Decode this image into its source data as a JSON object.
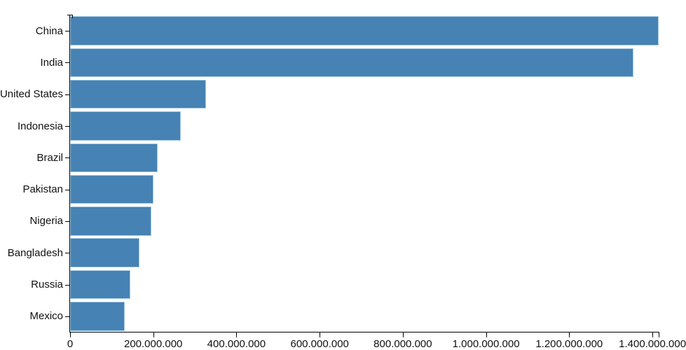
{
  "chart_data": {
    "type": "bar",
    "orientation": "horizontal",
    "title": "",
    "xlabel": "",
    "ylabel": "",
    "legend": false,
    "grid": false,
    "categories": [
      "China",
      "India",
      "United States",
      "Indonesia",
      "Brazil",
      "Pakistan",
      "Nigeria",
      "Bangladesh",
      "Russia",
      "Mexico"
    ],
    "values": [
      1415045928,
      1354051854,
      326766748,
      266794980,
      210867954,
      200813818,
      195875237,
      166368149,
      143964709,
      130759074
    ],
    "xlim": [
      0,
      1415045928
    ],
    "x_ticks": [
      {
        "value": 0,
        "label": "0"
      },
      {
        "value": 200000000,
        "label": "200.000.000"
      },
      {
        "value": 400000000,
        "label": "400.000.000"
      },
      {
        "value": 600000000,
        "label": "600.000.000"
      },
      {
        "value": 800000000,
        "label": "800.000.000"
      },
      {
        "value": 1000000000,
        "label": "1.000.000.000"
      },
      {
        "value": 1200000000,
        "label": "1.200.000.000"
      },
      {
        "value": 1400000000,
        "label": "1.400.000.000"
      }
    ],
    "colors": {
      "bar_fill": "#4682b4",
      "bar_stroke": "#a6cbe3",
      "axis": "#000000",
      "text": "#111111",
      "background": "#ffffff"
    }
  }
}
